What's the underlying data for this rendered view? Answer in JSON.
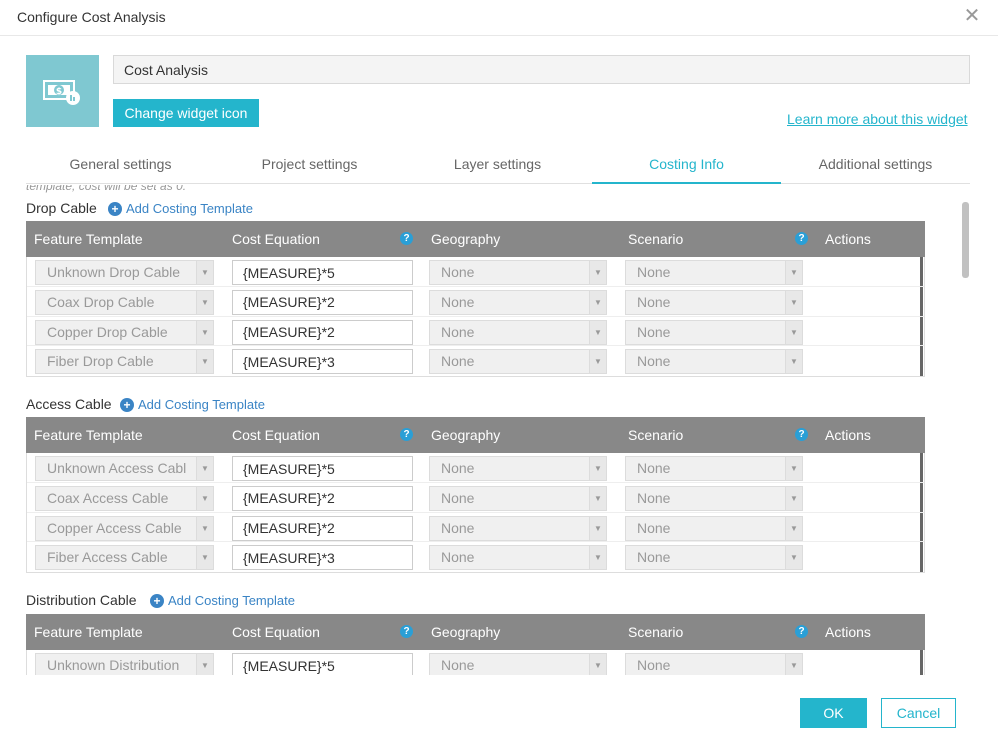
{
  "dialog": {
    "title": "Configure Cost Analysis",
    "close_icon": "close-icon",
    "widget_name": "Cost Analysis",
    "change_icon_label": "Change widget icon",
    "learn_more_label": "Learn more about this widget",
    "widget_icon": "money-icon",
    "accent_color": "#24b5cc"
  },
  "tabs": [
    {
      "label": "General settings",
      "active": false
    },
    {
      "label": "Project settings",
      "active": false
    },
    {
      "label": "Layer settings",
      "active": false
    },
    {
      "label": "Costing Info",
      "active": true
    },
    {
      "label": "Additional settings",
      "active": false
    }
  ],
  "cut_text": "template, cost will be set as 0.",
  "add_template_label": "Add Costing Template",
  "columns": {
    "feature_template": "Feature Template",
    "cost_equation": "Cost Equation",
    "geography": "Geography",
    "scenario": "Scenario",
    "actions": "Actions"
  },
  "sections": [
    {
      "label": "Drop Cable",
      "rows": [
        {
          "template": "Unknown Drop Cable",
          "equation": "{MEASURE}*5",
          "geography": "None",
          "scenario": "None"
        },
        {
          "template": "Coax Drop Cable",
          "equation": "{MEASURE}*2",
          "geography": "None",
          "scenario": "None"
        },
        {
          "template": "Copper Drop Cable",
          "equation": "{MEASURE}*2",
          "geography": "None",
          "scenario": "None"
        },
        {
          "template": "Fiber Drop Cable",
          "equation": "{MEASURE}*3",
          "geography": "None",
          "scenario": "None"
        }
      ]
    },
    {
      "label": "Access Cable",
      "rows": [
        {
          "template": "Unknown Access Cabl",
          "equation": "{MEASURE}*5",
          "geography": "None",
          "scenario": "None"
        },
        {
          "template": "Coax Access Cable",
          "equation": "{MEASURE}*2",
          "geography": "None",
          "scenario": "None"
        },
        {
          "template": "Copper Access Cable",
          "equation": "{MEASURE}*2",
          "geography": "None",
          "scenario": "None"
        },
        {
          "template": "Fiber Access Cable",
          "equation": "{MEASURE}*3",
          "geography": "None",
          "scenario": "None"
        }
      ]
    },
    {
      "label": "Distribution Cable",
      "rows": [
        {
          "template": "Unknown Distribution",
          "equation": "{MEASURE}*5",
          "geography": "None",
          "scenario": "None"
        }
      ]
    }
  ],
  "footer": {
    "ok_label": "OK",
    "cancel_label": "Cancel"
  }
}
